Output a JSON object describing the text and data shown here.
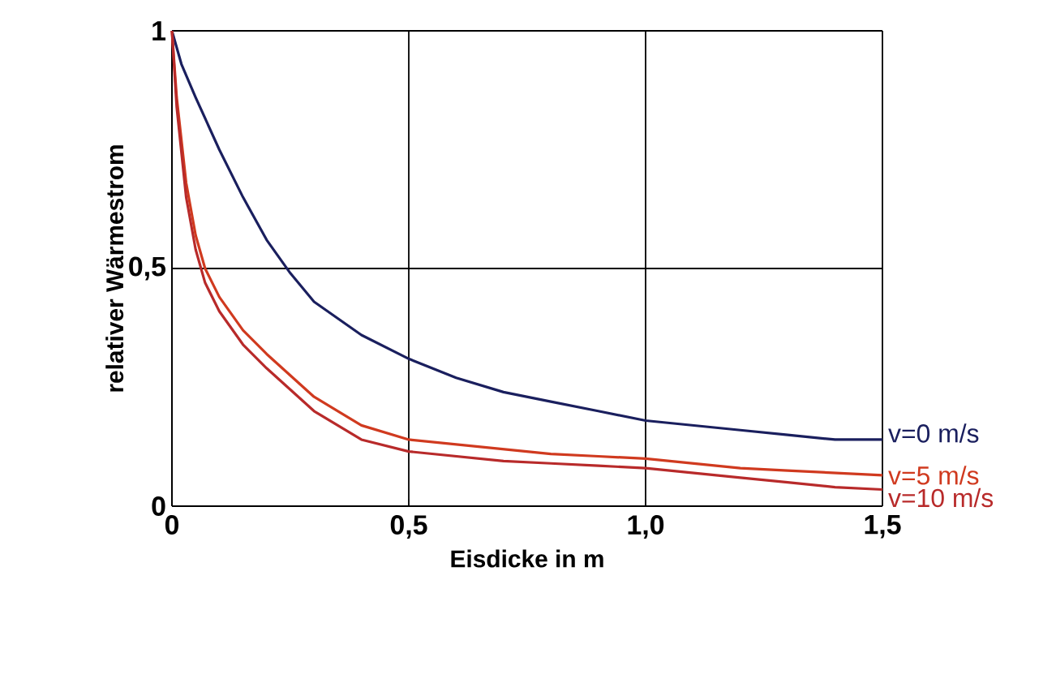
{
  "chart_data": {
    "type": "line",
    "xlabel": "Eisdicke in m",
    "ylabel": "relativer Wärmestrom",
    "xlim": [
      0,
      1.5
    ],
    "ylim": [
      0,
      1
    ],
    "xticks": [
      0,
      {
        "value": 0.5,
        "label": "0,5"
      },
      {
        "value": 1.0,
        "label": "1,0"
      },
      {
        "value": 1.5,
        "label": "1,5"
      }
    ],
    "yticks": [
      0,
      {
        "value": 0.5,
        "label": "0,5"
      },
      1
    ],
    "grid": true,
    "marker": "none",
    "line_style": "solid",
    "series": [
      {
        "name": "v=0 m/s",
        "color": "#1a1f5e",
        "x": [
          0,
          0.02,
          0.05,
          0.1,
          0.15,
          0.2,
          0.25,
          0.3,
          0.4,
          0.5,
          0.6,
          0.7,
          0.8,
          0.9,
          1.0,
          1.1,
          1.2,
          1.3,
          1.4,
          1.5
        ],
        "values": [
          1,
          0.93,
          0.86,
          0.75,
          0.65,
          0.56,
          0.49,
          0.43,
          0.36,
          0.31,
          0.27,
          0.24,
          0.22,
          0.2,
          0.18,
          0.17,
          0.16,
          0.15,
          0.14,
          0.14
        ]
      },
      {
        "name": "v=5 m/s",
        "color": "#d03a1f",
        "x": [
          0,
          0.01,
          0.03,
          0.05,
          0.07,
          0.1,
          0.15,
          0.2,
          0.3,
          0.4,
          0.5,
          0.6,
          0.7,
          0.8,
          0.9,
          1.0,
          1.1,
          1.2,
          1.3,
          1.4,
          1.5
        ],
        "values": [
          1,
          0.86,
          0.68,
          0.57,
          0.5,
          0.44,
          0.37,
          0.32,
          0.23,
          0.17,
          0.14,
          0.13,
          0.12,
          0.11,
          0.105,
          0.1,
          0.09,
          0.08,
          0.075,
          0.07,
          0.065
        ]
      },
      {
        "name": "v=10 m/s",
        "color": "#b82a2a",
        "x": [
          0,
          0.01,
          0.03,
          0.05,
          0.07,
          0.1,
          0.15,
          0.2,
          0.3,
          0.4,
          0.5,
          0.6,
          0.7,
          0.8,
          0.9,
          1.0,
          1.1,
          1.2,
          1.3,
          1.4,
          1.5
        ],
        "values": [
          1,
          0.84,
          0.65,
          0.54,
          0.47,
          0.41,
          0.34,
          0.29,
          0.2,
          0.14,
          0.115,
          0.105,
          0.095,
          0.09,
          0.085,
          0.08,
          0.07,
          0.06,
          0.05,
          0.04,
          0.035
        ]
      }
    ]
  }
}
